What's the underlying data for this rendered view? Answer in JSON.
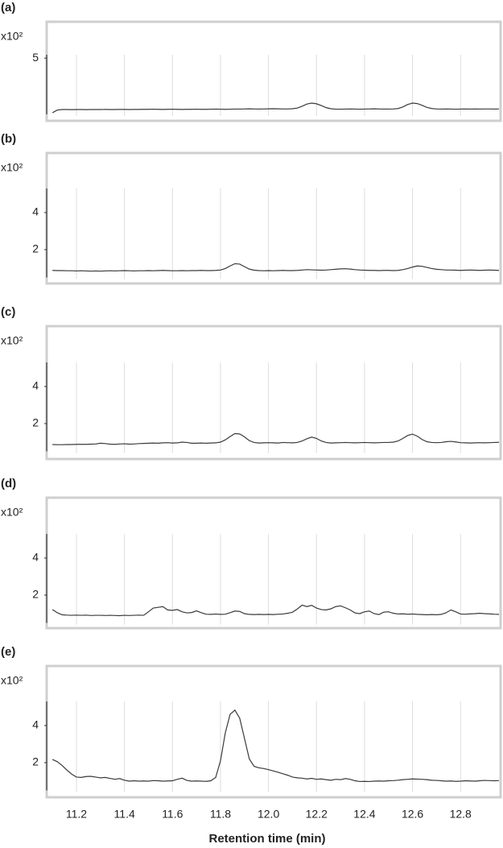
{
  "chart_data": [
    {
      "type": "line",
      "panel_label": "(a)",
      "scale_label": "x10²",
      "color": "#3a3a3a",
      "grid": true,
      "show_xtick_labels": false,
      "xlim": [
        11.08,
        12.96
      ],
      "xticks": [
        11.2,
        11.4,
        11.6,
        11.8,
        {
          "value": 12,
          "label": "12.0"
        },
        12.2,
        12.4,
        12.6,
        12.8
      ],
      "ylim": [
        0,
        5.3
      ],
      "yticks": [
        5
      ],
      "x": [
        11.1,
        11.12,
        11.14,
        11.16,
        11.18,
        11.2,
        11.22,
        11.24,
        11.26,
        11.28,
        11.3,
        11.32,
        11.34,
        11.36,
        11.38,
        11.4,
        11.42,
        11.44,
        11.46,
        11.48,
        11.5,
        11.52,
        11.54,
        11.56,
        11.58,
        11.6,
        11.62,
        11.64,
        11.66,
        11.68,
        11.7,
        11.72,
        11.74,
        11.76,
        11.78,
        11.8,
        11.82,
        11.84,
        11.86,
        11.88,
        11.9,
        11.92,
        11.94,
        11.96,
        11.98,
        12,
        12.02,
        12.04,
        12.06,
        12.08,
        12.1,
        12.12,
        12.14,
        12.16,
        12.18,
        12.2,
        12.22,
        12.24,
        12.26,
        12.28,
        12.3,
        12.32,
        12.34,
        12.36,
        12.38,
        12.4,
        12.42,
        12.44,
        12.46,
        12.48,
        12.5,
        12.52,
        12.54,
        12.56,
        12.58,
        12.6,
        12.62,
        12.64,
        12.66,
        12.68,
        12.7,
        12.72,
        12.74,
        12.76,
        12.78,
        12.8,
        12.82,
        12.84,
        12.86,
        12.88,
        12.9,
        12.92,
        12.94,
        12.96
      ],
      "values": [
        0.15,
        0.38,
        0.43,
        0.43,
        0.42,
        0.43,
        0.43,
        0.42,
        0.43,
        0.43,
        0.43,
        0.44,
        0.43,
        0.43,
        0.44,
        0.44,
        0.43,
        0.44,
        0.44,
        0.45,
        0.45,
        0.46,
        0.45,
        0.44,
        0.45,
        0.46,
        0.45,
        0.44,
        0.45,
        0.45,
        0.46,
        0.45,
        0.45,
        0.46,
        0.47,
        0.46,
        0.45,
        0.46,
        0.47,
        0.47,
        0.48,
        0.49,
        0.48,
        0.47,
        0.48,
        0.49,
        0.5,
        0.49,
        0.48,
        0.48,
        0.5,
        0.56,
        0.72,
        0.92,
        1.0,
        0.94,
        0.78,
        0.6,
        0.5,
        0.46,
        0.46,
        0.47,
        0.48,
        0.47,
        0.46,
        0.47,
        0.48,
        0.49,
        0.48,
        0.47,
        0.47,
        0.48,
        0.52,
        0.66,
        0.88,
        1.0,
        0.96,
        0.8,
        0.62,
        0.52,
        0.48,
        0.47,
        0.48,
        0.47,
        0.46,
        0.47,
        0.48,
        0.47,
        0.48,
        0.47,
        0.48,
        0.48,
        0.47,
        0.48
      ]
    },
    {
      "type": "line",
      "panel_label": "(b)",
      "scale_label": "x10²",
      "color": "#3a3a3a",
      "grid": true,
      "show_xtick_labels": false,
      "xlim": [
        11.08,
        12.96
      ],
      "xticks": [
        11.2,
        11.4,
        11.6,
        11.8,
        {
          "value": 12,
          "label": "12.0"
        },
        12.2,
        12.4,
        12.6,
        12.8
      ],
      "ylim": [
        0.5,
        5.3
      ],
      "yticks": [
        2,
        4
      ],
      "x": [
        11.1,
        11.12,
        11.14,
        11.16,
        11.18,
        11.2,
        11.22,
        11.24,
        11.26,
        11.28,
        11.3,
        11.32,
        11.34,
        11.36,
        11.38,
        11.4,
        11.42,
        11.44,
        11.46,
        11.48,
        11.5,
        11.52,
        11.54,
        11.56,
        11.58,
        11.6,
        11.62,
        11.64,
        11.66,
        11.68,
        11.7,
        11.72,
        11.74,
        11.76,
        11.78,
        11.8,
        11.82,
        11.84,
        11.86,
        11.88,
        11.9,
        11.92,
        11.94,
        11.96,
        11.98,
        12,
        12.02,
        12.04,
        12.06,
        12.08,
        12.1,
        12.12,
        12.14,
        12.16,
        12.18,
        12.2,
        12.22,
        12.24,
        12.26,
        12.28,
        12.3,
        12.32,
        12.34,
        12.36,
        12.38,
        12.4,
        12.42,
        12.44,
        12.46,
        12.48,
        12.5,
        12.52,
        12.54,
        12.56,
        12.58,
        12.6,
        12.62,
        12.64,
        12.66,
        12.68,
        12.7,
        12.72,
        12.74,
        12.76,
        12.78,
        12.8,
        12.82,
        12.84,
        12.86,
        12.88,
        12.9,
        12.92,
        12.94,
        12.96
      ],
      "values": [
        0.88,
        0.87,
        0.87,
        0.86,
        0.86,
        0.85,
        0.86,
        0.85,
        0.84,
        0.85,
        0.84,
        0.85,
        0.86,
        0.85,
        0.86,
        0.87,
        0.86,
        0.85,
        0.86,
        0.86,
        0.87,
        0.86,
        0.87,
        0.88,
        0.87,
        0.86,
        0.86,
        0.87,
        0.86,
        0.87,
        0.87,
        0.88,
        0.87,
        0.87,
        0.88,
        0.9,
        0.98,
        1.12,
        1.24,
        1.22,
        1.08,
        0.95,
        0.89,
        0.87,
        0.86,
        0.87,
        0.86,
        0.87,
        0.88,
        0.87,
        0.87,
        0.88,
        0.9,
        0.92,
        0.91,
        0.9,
        0.89,
        0.9,
        0.92,
        0.94,
        0.96,
        0.97,
        0.95,
        0.92,
        0.9,
        0.89,
        0.88,
        0.88,
        0.87,
        0.88,
        0.88,
        0.87,
        0.88,
        0.92,
        0.98,
        1.06,
        1.12,
        1.1,
        1.04,
        0.98,
        0.94,
        0.92,
        0.9,
        0.9,
        0.89,
        0.88,
        0.89,
        0.9,
        0.89,
        0.88,
        0.89,
        0.9,
        0.89,
        0.88
      ]
    },
    {
      "type": "line",
      "panel_label": "(c)",
      "scale_label": "x10²",
      "color": "#3a3a3a",
      "grid": true,
      "show_xtick_labels": false,
      "xlim": [
        11.08,
        12.96
      ],
      "xticks": [
        11.2,
        11.4,
        11.6,
        11.8,
        {
          "value": 12,
          "label": "12.0"
        },
        12.2,
        12.4,
        12.6,
        12.8
      ],
      "ylim": [
        0.5,
        5.3
      ],
      "yticks": [
        2,
        4
      ],
      "x": [
        11.1,
        11.12,
        11.14,
        11.16,
        11.18,
        11.2,
        11.22,
        11.24,
        11.26,
        11.28,
        11.3,
        11.32,
        11.34,
        11.36,
        11.38,
        11.4,
        11.42,
        11.44,
        11.46,
        11.48,
        11.5,
        11.52,
        11.54,
        11.56,
        11.58,
        11.6,
        11.62,
        11.64,
        11.66,
        11.68,
        11.7,
        11.72,
        11.74,
        11.76,
        11.78,
        11.8,
        11.82,
        11.84,
        11.86,
        11.88,
        11.9,
        11.92,
        11.94,
        11.96,
        11.98,
        12,
        12.02,
        12.04,
        12.06,
        12.08,
        12.1,
        12.12,
        12.14,
        12.16,
        12.18,
        12.2,
        12.22,
        12.24,
        12.26,
        12.28,
        12.3,
        12.32,
        12.34,
        12.36,
        12.38,
        12.4,
        12.42,
        12.44,
        12.46,
        12.48,
        12.5,
        12.52,
        12.54,
        12.56,
        12.58,
        12.6,
        12.62,
        12.64,
        12.66,
        12.68,
        12.7,
        12.72,
        12.74,
        12.76,
        12.78,
        12.8,
        12.82,
        12.84,
        12.86,
        12.88,
        12.9,
        12.92,
        12.94,
        12.96
      ],
      "values": [
        0.87,
        0.86,
        0.86,
        0.87,
        0.87,
        0.88,
        0.88,
        0.88,
        0.89,
        0.9,
        0.94,
        0.92,
        0.89,
        0.88,
        0.9,
        0.91,
        0.89,
        0.9,
        0.92,
        0.93,
        0.94,
        0.95,
        0.94,
        0.96,
        0.97,
        0.95,
        0.96,
        1.0,
        0.98,
        0.94,
        0.94,
        0.95,
        0.94,
        0.95,
        0.96,
        1.0,
        1.12,
        1.3,
        1.46,
        1.44,
        1.28,
        1.08,
        0.98,
        0.95,
        0.96,
        0.97,
        0.96,
        0.95,
        0.98,
        0.97,
        0.96,
        0.98,
        1.06,
        1.18,
        1.27,
        1.2,
        1.06,
        0.98,
        0.95,
        0.96,
        0.97,
        0.98,
        0.97,
        0.96,
        0.97,
        0.98,
        0.97,
        0.96,
        0.97,
        0.98,
        0.98,
        1.0,
        1.06,
        1.2,
        1.36,
        1.43,
        1.32,
        1.14,
        1.02,
        0.98,
        0.97,
        0.98,
        1.02,
        1.04,
        1.01,
        0.97,
        0.96,
        0.95,
        0.96,
        0.97,
        0.96,
        0.97,
        0.98,
        0.99
      ]
    },
    {
      "type": "line",
      "panel_label": "(d)",
      "scale_label": "x10²",
      "color": "#3a3a3a",
      "grid": true,
      "show_xtick_labels": false,
      "xlim": [
        11.08,
        12.96
      ],
      "xticks": [
        11.2,
        11.4,
        11.6,
        11.8,
        {
          "value": 12,
          "label": "12.0"
        },
        12.2,
        12.4,
        12.6,
        12.8
      ],
      "ylim": [
        0.5,
        5.3
      ],
      "yticks": [
        2,
        4
      ],
      "x": [
        11.1,
        11.12,
        11.14,
        11.16,
        11.18,
        11.2,
        11.22,
        11.24,
        11.26,
        11.28,
        11.3,
        11.32,
        11.34,
        11.36,
        11.38,
        11.4,
        11.42,
        11.44,
        11.46,
        11.48,
        11.5,
        11.52,
        11.54,
        11.56,
        11.58,
        11.6,
        11.62,
        11.64,
        11.66,
        11.68,
        11.7,
        11.72,
        11.74,
        11.76,
        11.78,
        11.8,
        11.82,
        11.84,
        11.86,
        11.88,
        11.9,
        11.92,
        11.94,
        11.96,
        11.98,
        12,
        12.02,
        12.04,
        12.06,
        12.08,
        12.1,
        12.12,
        12.14,
        12.16,
        12.18,
        12.2,
        12.22,
        12.24,
        12.26,
        12.28,
        12.3,
        12.32,
        12.34,
        12.36,
        12.38,
        12.4,
        12.42,
        12.44,
        12.46,
        12.48,
        12.5,
        12.52,
        12.54,
        12.56,
        12.58,
        12.6,
        12.62,
        12.64,
        12.66,
        12.68,
        12.7,
        12.72,
        12.74,
        12.76,
        12.78,
        12.8,
        12.82,
        12.84,
        12.86,
        12.88,
        12.9,
        12.92,
        12.94,
        12.96
      ],
      "values": [
        1.22,
        1.05,
        0.94,
        0.92,
        0.91,
        0.92,
        0.91,
        0.92,
        0.9,
        0.91,
        0.91,
        0.9,
        0.91,
        0.9,
        0.89,
        0.91,
        0.9,
        0.91,
        0.92,
        0.91,
        1.1,
        1.3,
        1.34,
        1.38,
        1.2,
        1.18,
        1.22,
        1.1,
        1.04,
        1.06,
        1.15,
        1.05,
        0.97,
        0.96,
        0.98,
        0.96,
        0.97,
        1.05,
        1.14,
        1.12,
        1.0,
        0.96,
        0.95,
        0.96,
        0.95,
        0.96,
        0.95,
        0.97,
        0.98,
        1.02,
        1.08,
        1.25,
        1.46,
        1.38,
        1.45,
        1.3,
        1.22,
        1.2,
        1.26,
        1.38,
        1.42,
        1.32,
        1.2,
        1.04,
        1.0,
        1.1,
        1.14,
        1.0,
        0.95,
        1.08,
        1.1,
        1.02,
        0.98,
        0.99,
        0.97,
        0.98,
        0.96,
        0.95,
        0.94,
        0.95,
        0.94,
        0.96,
        1.05,
        1.2,
        1.1,
        0.98,
        0.97,
        0.99,
        1.0,
        1.02,
        1.0,
        0.99,
        0.97,
        0.96
      ]
    },
    {
      "type": "line",
      "panel_label": "(e)",
      "scale_label": "x10²",
      "color": "#3a3a3a",
      "grid": true,
      "show_xtick_labels": true,
      "xlabel": "Retention time (min)",
      "xlim": [
        11.08,
        12.96
      ],
      "xticks": [
        11.2,
        11.4,
        11.6,
        11.8,
        {
          "value": 12,
          "label": "12.0"
        },
        12.2,
        12.4,
        12.6,
        12.8
      ],
      "ylim": [
        0.5,
        5.3
      ],
      "yticks": [
        2,
        4
      ],
      "x": [
        11.1,
        11.12,
        11.14,
        11.16,
        11.18,
        11.2,
        11.22,
        11.24,
        11.26,
        11.28,
        11.3,
        11.32,
        11.34,
        11.36,
        11.38,
        11.4,
        11.42,
        11.44,
        11.46,
        11.48,
        11.5,
        11.52,
        11.54,
        11.56,
        11.58,
        11.6,
        11.62,
        11.64,
        11.66,
        11.68,
        11.7,
        11.72,
        11.74,
        11.76,
        11.78,
        11.8,
        11.82,
        11.84,
        11.86,
        11.88,
        11.9,
        11.92,
        11.94,
        11.96,
        11.98,
        12,
        12.02,
        12.04,
        12.06,
        12.08,
        12.1,
        12.12,
        12.14,
        12.16,
        12.18,
        12.2,
        12.22,
        12.24,
        12.26,
        12.28,
        12.3,
        12.32,
        12.34,
        12.36,
        12.38,
        12.4,
        12.42,
        12.44,
        12.46,
        12.48,
        12.5,
        12.52,
        12.54,
        12.56,
        12.58,
        12.6,
        12.62,
        12.64,
        12.66,
        12.68,
        12.7,
        12.72,
        12.74,
        12.76,
        12.78,
        12.8,
        12.82,
        12.84,
        12.86,
        12.88,
        12.9,
        12.92,
        12.94,
        12.96
      ],
      "values": [
        2.17,
        2.05,
        1.85,
        1.6,
        1.38,
        1.22,
        1.2,
        1.25,
        1.26,
        1.22,
        1.18,
        1.2,
        1.15,
        1.1,
        1.14,
        1.05,
        1.0,
        1.02,
        1.0,
        1.01,
        1.0,
        1.03,
        1.02,
        1.0,
        1.01,
        1.02,
        1.1,
        1.16,
        1.04,
        1.0,
        1.01,
        1.0,
        0.99,
        1.02,
        1.2,
        2.1,
        3.6,
        4.6,
        4.83,
        4.4,
        3.3,
        2.2,
        1.8,
        1.72,
        1.68,
        1.62,
        1.55,
        1.48,
        1.4,
        1.32,
        1.22,
        1.18,
        1.16,
        1.12,
        1.15,
        1.1,
        1.12,
        1.08,
        1.05,
        1.1,
        1.08,
        1.14,
        1.1,
        1.02,
        0.98,
        0.99,
        0.98,
        1.0,
        1.01,
        1.0,
        1.02,
        1.03,
        1.05,
        1.08,
        1.1,
        1.12,
        1.11,
        1.1,
        1.08,
        1.05,
        1.04,
        1.02,
        1.0,
        1.01,
        0.99,
        1.0,
        1.02,
        1.01,
        1.0,
        1.02,
        1.04,
        1.03,
        1.02,
        1.03
      ]
    }
  ]
}
